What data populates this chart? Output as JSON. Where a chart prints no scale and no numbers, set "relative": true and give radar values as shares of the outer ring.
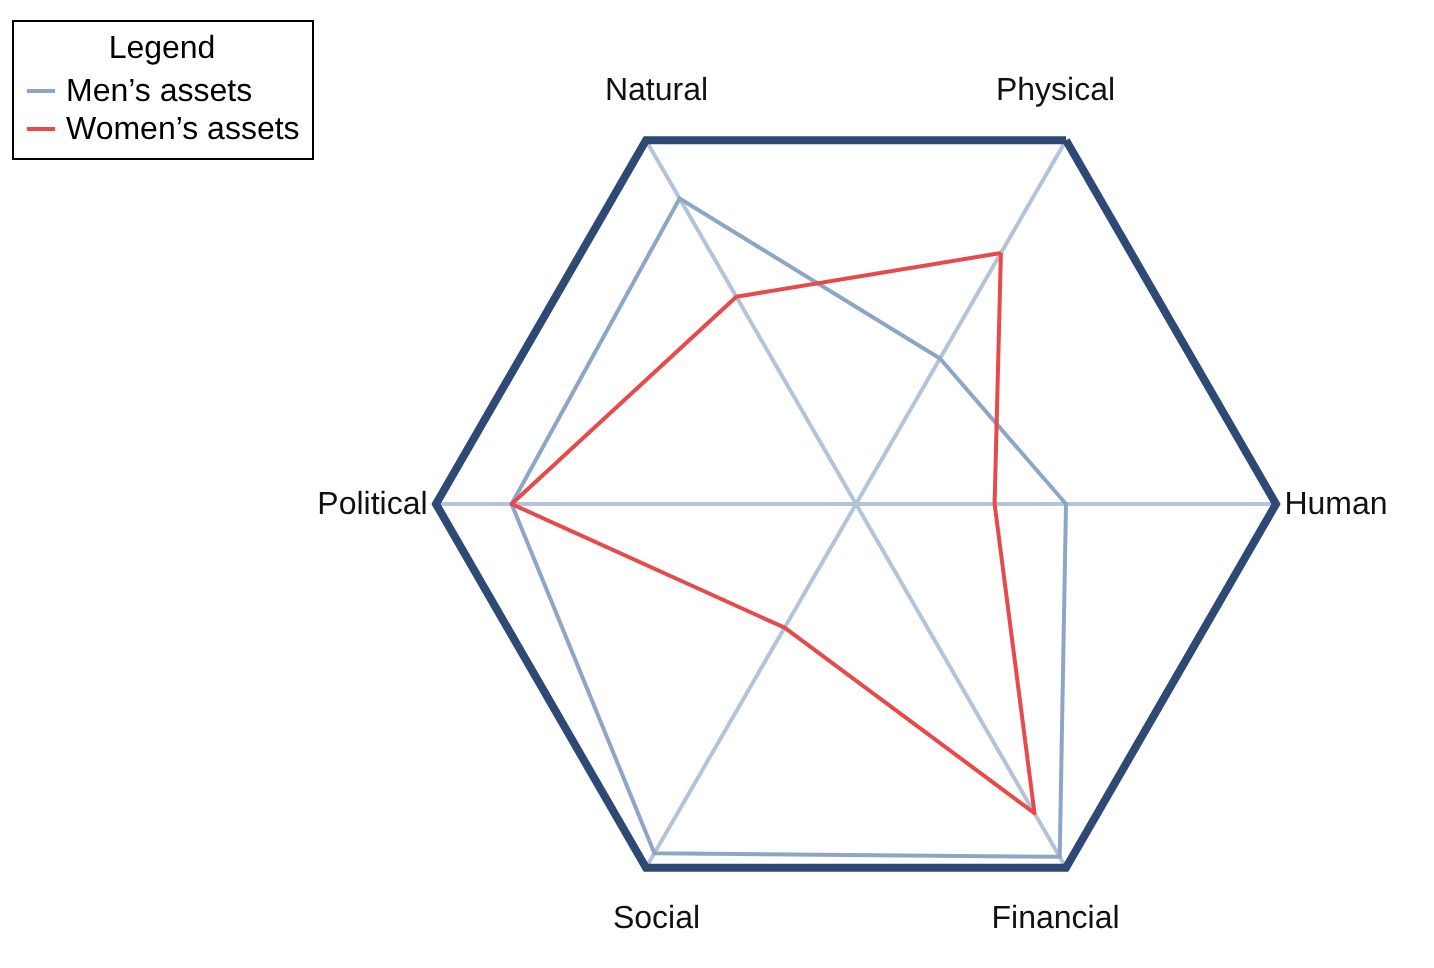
{
  "chart_data": {
    "type": "radar",
    "relative": true,
    "legend_title": "Legend",
    "legend": "top left",
    "grid": true,
    "categories": [
      "Physical",
      "Human",
      "Financial",
      "Social",
      "Political",
      "Natural"
    ],
    "series": [
      {
        "name": "Men’s assets",
        "color": "#8ea6c6",
        "values": [
          0.4,
          0.5,
          0.97,
          0.96,
          0.82,
          0.84
        ]
      },
      {
        "name": "Women’s assets",
        "color": "#e8494a",
        "values": [
          0.69,
          0.33,
          0.85,
          0.34,
          0.82,
          0.57
        ]
      }
    ]
  }
}
